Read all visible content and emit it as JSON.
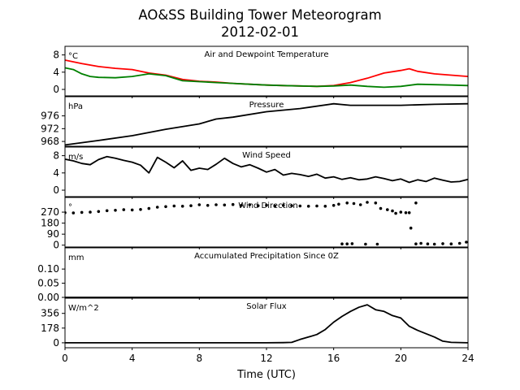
{
  "title": "AO&SS Building Tower Meteorogram",
  "subtitle": "2012-02-01",
  "xlabel": "Time (UTC)",
  "colors": {
    "temperature": "#ff0000",
    "dewpoint": "#008000",
    "other": "#000000"
  },
  "chart_data": [
    {
      "type": "line",
      "title": "Air and Dewpoint Temperature",
      "unit": "°C",
      "xlim": [
        0,
        24
      ],
      "ylim": [
        -1.5,
        10
      ],
      "yticks": [
        0,
        4,
        8
      ],
      "xticks": [
        0,
        4,
        8,
        12,
        16,
        20,
        24
      ],
      "series": [
        {
          "color_key": "temperature",
          "x": [
            0,
            1,
            2,
            3,
            4,
            5,
            6,
            7,
            8,
            9,
            10,
            11,
            12,
            13,
            14,
            15,
            16,
            17,
            18,
            19,
            20,
            20.5,
            21,
            22,
            23,
            24
          ],
          "values": [
            6.8,
            6.0,
            5.3,
            4.9,
            4.6,
            3.8,
            3.3,
            2.3,
            1.9,
            1.7,
            1.4,
            1.2,
            1.0,
            0.9,
            0.8,
            0.7,
            0.9,
            1.6,
            2.6,
            3.8,
            4.4,
            4.8,
            4.2,
            3.6,
            3.3,
            3.0
          ]
        },
        {
          "color_key": "dewpoint",
          "x": [
            0,
            0.5,
            1,
            1.5,
            2,
            3,
            4,
            5,
            6,
            7,
            8,
            9,
            10,
            11,
            12,
            13,
            14,
            15,
            16,
            17,
            18,
            19,
            20,
            21,
            22,
            23,
            24
          ],
          "values": [
            5.0,
            4.6,
            3.6,
            3.0,
            2.8,
            2.7,
            3.0,
            3.6,
            3.2,
            2.0,
            1.8,
            1.6,
            1.4,
            1.2,
            1.0,
            0.9,
            0.8,
            0.7,
            0.8,
            1.0,
            0.7,
            0.5,
            0.7,
            1.2,
            1.1,
            1.0,
            0.9
          ]
        }
      ]
    },
    {
      "type": "line",
      "title": "Pressure",
      "unit": "hPa",
      "xlim": [
        0,
        24
      ],
      "ylim": [
        966.5,
        982
      ],
      "yticks": [
        968,
        972,
        976
      ],
      "series": [
        {
          "color_key": "other",
          "x": [
            0,
            2,
            4,
            6,
            8,
            9,
            10,
            12,
            14,
            16,
            17,
            18,
            20,
            22,
            24
          ],
          "values": [
            966.9,
            968.3,
            969.8,
            971.8,
            973.5,
            975.0,
            975.6,
            977.3,
            978.3,
            979.8,
            979.3,
            979.3,
            979.3,
            979.6,
            979.8
          ]
        }
      ]
    },
    {
      "type": "line",
      "title": "Wind Speed",
      "unit": "m/s",
      "xlim": [
        0,
        24
      ],
      "ylim": [
        -1.5,
        10
      ],
      "yticks": [
        0,
        4,
        8
      ],
      "series": [
        {
          "color_key": "other",
          "x": [
            0,
            0.5,
            1,
            1.5,
            2,
            2.5,
            3,
            3.5,
            4,
            4.5,
            5,
            5.5,
            6,
            6.5,
            7,
            7.5,
            8,
            8.5,
            9,
            9.5,
            10,
            10.5,
            11,
            11.5,
            12,
            12.5,
            13,
            13.5,
            14,
            14.5,
            15,
            15.5,
            16,
            16.5,
            17,
            17.5,
            18,
            18.5,
            19,
            19.5,
            20,
            20.5,
            21,
            21.5,
            22,
            22.5,
            23,
            23.5,
            24
          ],
          "values": [
            7.2,
            6.8,
            6.2,
            5.9,
            7.1,
            7.8,
            7.4,
            6.9,
            6.5,
            5.8,
            4.0,
            7.6,
            6.5,
            5.2,
            6.8,
            4.6,
            5.1,
            4.8,
            6.0,
            7.4,
            6.2,
            5.4,
            5.9,
            5.1,
            4.2,
            4.8,
            3.5,
            3.9,
            3.6,
            3.2,
            3.7,
            2.8,
            3.1,
            2.5,
            2.9,
            2.4,
            2.6,
            3.1,
            2.7,
            2.2,
            2.6,
            1.8,
            2.4,
            2.0,
            2.8,
            2.3,
            1.9,
            2.0,
            2.5
          ]
        }
      ]
    },
    {
      "type": "scatter",
      "title": "Wind Direction",
      "unit": "°",
      "xlim": [
        0,
        24
      ],
      "ylim": [
        -15,
        390
      ],
      "yticks": [
        0,
        90,
        180,
        270
      ],
      "series": [
        {
          "color_key": "other",
          "x": [
            0,
            0.5,
            1,
            1.5,
            2,
            2.5,
            3,
            3.5,
            4,
            4.5,
            5,
            5.5,
            6,
            6.5,
            7,
            7.5,
            8,
            8.5,
            9,
            9.5,
            10,
            10.5,
            11,
            11.5,
            12,
            12.5,
            13,
            13.5,
            14,
            14.5,
            15,
            15.5,
            16,
            16.3,
            16.8,
            17.2,
            17.6,
            18.0,
            18.5,
            18.8,
            19.2,
            19.5,
            19.7,
            20.0,
            20.3,
            20.5,
            20.6,
            20.9,
            21.2,
            21.6,
            22.0,
            22.5,
            23.0,
            23.5,
            23.9,
            16.5,
            16.8,
            17.1,
            17.9,
            18.6,
            20.9
          ],
          "values": [
            265,
            263,
            268,
            270,
            275,
            282,
            285,
            290,
            288,
            292,
            300,
            310,
            315,
            320,
            318,
            322,
            330,
            325,
            330,
            328,
            332,
            325,
            330,
            322,
            326,
            320,
            325,
            322,
            320,
            318,
            320,
            318,
            325,
            335,
            345,
            340,
            330,
            350,
            345,
            300,
            290,
            280,
            260,
            270,
            265,
            265,
            140,
            10,
            15,
            10,
            8,
            12,
            10,
            15,
            25,
            10,
            10,
            12,
            8,
            8,
            345
          ]
        }
      ]
    },
    {
      "type": "line",
      "title": "Accumulated Precipitation Since 0Z",
      "unit": "mm",
      "xlim": [
        0,
        24
      ],
      "ylim": [
        0,
        0.175
      ],
      "yticks": [
        0.0,
        0.05,
        0.1
      ],
      "ytick_labels": [
        "0.00",
        "0.05",
        "0.10"
      ],
      "series": [
        {
          "color_key": "other",
          "x": [
            0,
            24
          ],
          "values": [
            0,
            0
          ]
        }
      ]
    },
    {
      "type": "line",
      "title": "Solar Flux",
      "unit": "W/m^2",
      "xlim": [
        0,
        24
      ],
      "ylim": [
        -60,
        540
      ],
      "yticks": [
        0,
        178,
        356
      ],
      "series": [
        {
          "color_key": "other",
          "x": [
            0,
            6,
            12,
            13,
            13.5,
            14,
            14.5,
            15,
            15.5,
            16,
            16.5,
            17,
            17.5,
            18,
            18.5,
            19,
            19.5,
            20,
            20.5,
            21,
            21.5,
            22,
            22.5,
            23,
            24
          ],
          "values": [
            0,
            0,
            0,
            2,
            5,
            40,
            70,
            100,
            160,
            250,
            320,
            380,
            430,
            460,
            400,
            380,
            330,
            300,
            200,
            150,
            110,
            70,
            20,
            5,
            0
          ]
        }
      ]
    }
  ]
}
